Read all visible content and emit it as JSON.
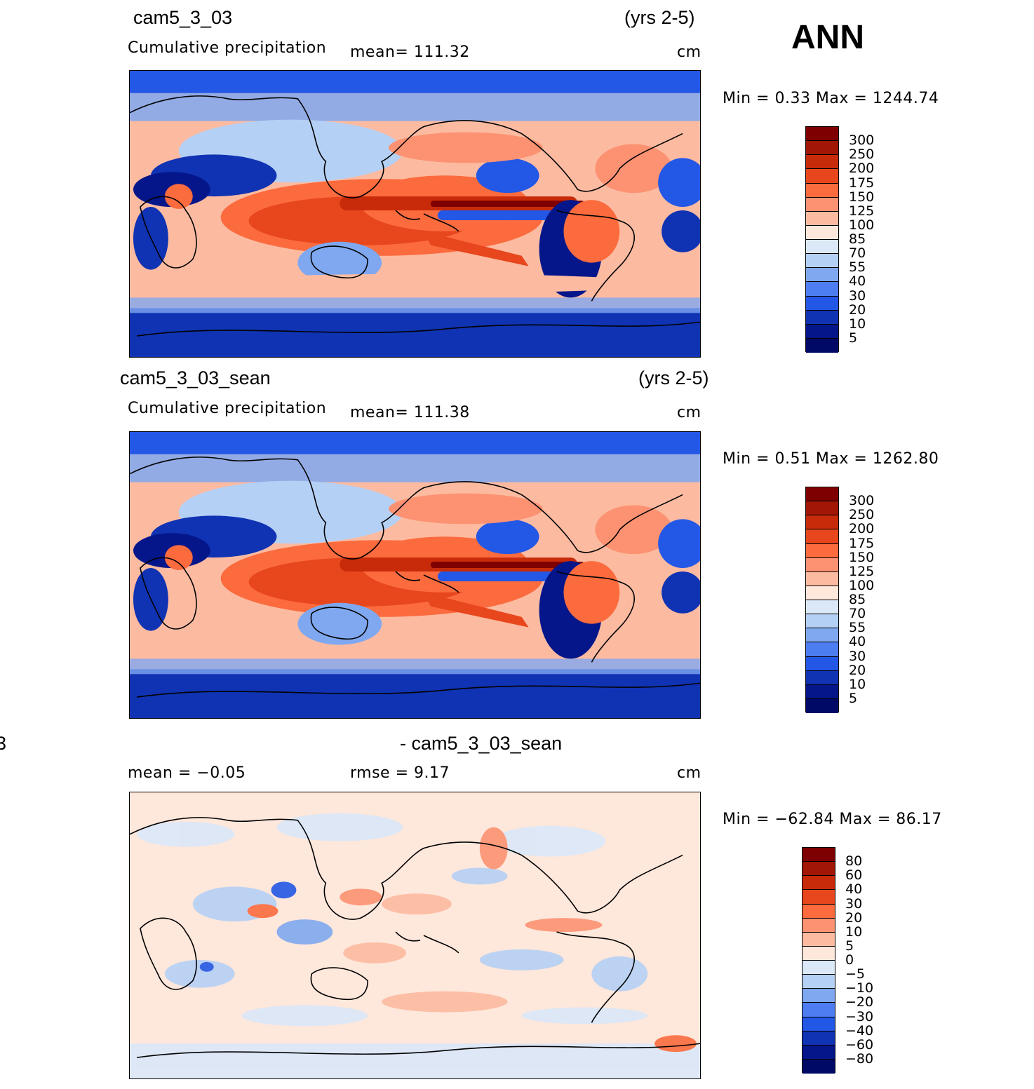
{
  "season": "ANN",
  "panels": [
    {
      "id": "panel1",
      "case": "cam5_3_03",
      "years": "(yrs 2-5)",
      "variable": "Cumulative precipitation",
      "stat1": "mean=  111.32",
      "units": "cm",
      "minmax": "Min  =     0.33  Max  =  1244.74",
      "levels": [
        "300",
        "250",
        "200",
        "175",
        "150",
        "125",
        "100",
        "85",
        "70",
        "55",
        "40",
        "30",
        "20",
        "10",
        "5"
      ],
      "colors": [
        "#7f0000",
        "#a11605",
        "#c82b0a",
        "#e8461c",
        "#fb6b3e",
        "#fc9272",
        "#fcbba1",
        "#fee7db",
        "#dbe8f8",
        "#b5d0f5",
        "#7fa8f0",
        "#4d7df0",
        "#2357e6",
        "#1033b3",
        "#04168a",
        "#000a66"
      ]
    },
    {
      "id": "panel2",
      "case": "cam5_3_03_sean",
      "years": "(yrs 2-5)",
      "variable": "Cumulative precipitation",
      "stat1": "mean=  111.38",
      "units": "cm",
      "minmax": "Min  =     0.51  Max  =  1262.80",
      "levels": [
        "300",
        "250",
        "200",
        "175",
        "150",
        "125",
        "100",
        "85",
        "70",
        "55",
        "40",
        "30",
        "20",
        "10",
        "5"
      ],
      "colors": [
        "#7f0000",
        "#a11605",
        "#c82b0a",
        "#e8461c",
        "#fb6b3e",
        "#fc9272",
        "#fcbba1",
        "#fee7db",
        "#dbe8f8",
        "#b5d0f5",
        "#7fa8f0",
        "#4d7df0",
        "#2357e6",
        "#1033b3",
        "#04168a",
        "#000a66"
      ]
    },
    {
      "id": "panel3",
      "case": "- cam5_3_03_sean",
      "case_left_fragment": "3",
      "stat1": "mean  =    −0.05",
      "stat2": "rmse  =     9.17",
      "units": "cm",
      "minmax": "Min  =  −62.84  Max  =    86.17",
      "levels": [
        "80",
        "60",
        "40",
        "30",
        "20",
        "10",
        "5",
        "0",
        "−5",
        "−10",
        "−20",
        "−30",
        "−40",
        "−60",
        "−80"
      ],
      "colors": [
        "#7f0000",
        "#a11605",
        "#c82b0a",
        "#e8461c",
        "#fb6b3e",
        "#fc9272",
        "#fcbba1",
        "#fee7db",
        "#dbe8f8",
        "#b5d0f5",
        "#7fa8f0",
        "#4d7df0",
        "#2357e6",
        "#1033b3",
        "#04168a",
        "#000a66"
      ]
    }
  ]
}
